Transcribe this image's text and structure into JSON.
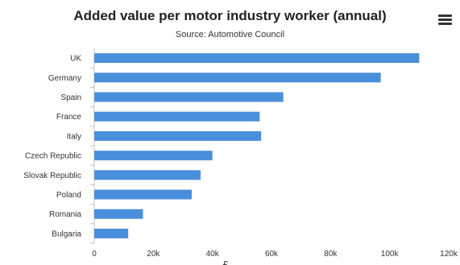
{
  "title": "Added value per motor industry worker (annual)",
  "subtitle": "Source: Automotive Council",
  "menu_icon": "hamburger-menu-icon",
  "chart_data": {
    "type": "bar",
    "orientation": "horizontal",
    "categories": [
      "UK",
      "Germany",
      "Spain",
      "France",
      "Italy",
      "Czech Republic",
      "Slovak Republic",
      "Poland",
      "Romania",
      "Bulgaria"
    ],
    "values": [
      110000,
      97000,
      64000,
      56000,
      56500,
      40000,
      36000,
      33000,
      16500,
      11500
    ],
    "x_ticks": [
      "0",
      "20k",
      "40k",
      "60k",
      "80k",
      "100k",
      "120k"
    ],
    "xlabel": "£",
    "ylabel": "",
    "xlim": [
      0,
      120000
    ],
    "grid": false,
    "legend": "none",
    "bar_color": "#4a8fdc"
  }
}
